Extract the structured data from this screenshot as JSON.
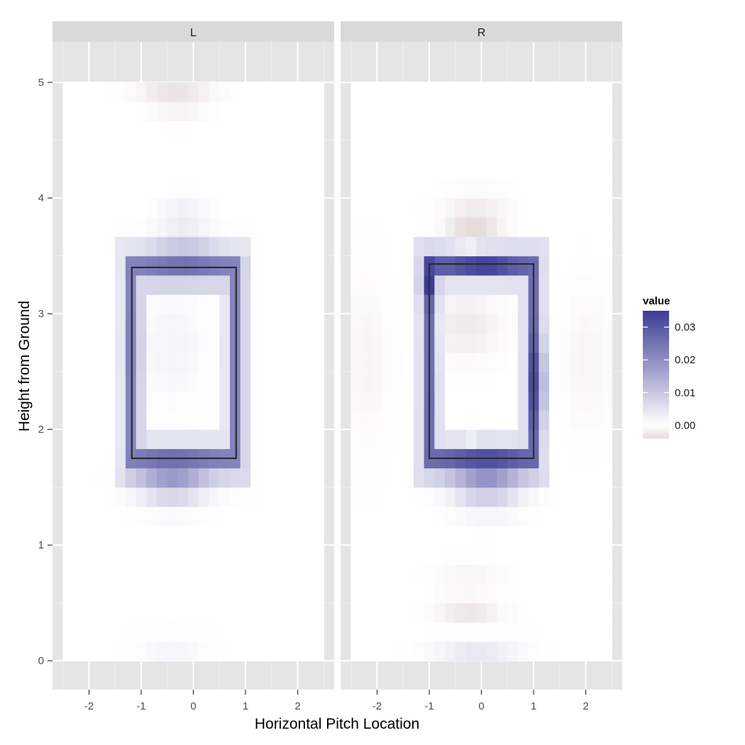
{
  "chart_data": {
    "type": "heatmap",
    "xlabel": "Horizontal Pitch Location",
    "ylabel": "Height from Ground",
    "xlim": [
      -2.7,
      2.7
    ],
    "ylim": [
      -0.25,
      5.35
    ],
    "x_ticks": [
      -2,
      -1,
      0,
      1,
      2
    ],
    "x_tick_labels": [
      "-2",
      "-1",
      "0",
      "1",
      "2"
    ],
    "y_ticks": [
      0,
      1,
      2,
      3,
      4,
      5
    ],
    "y_tick_labels": [
      "0",
      "1",
      "2",
      "3",
      "4",
      "5"
    ],
    "data_x_range": [
      -2.5,
      2.5
    ],
    "data_y_range": [
      0.0,
      5.0
    ],
    "grid_x_cells": 25,
    "grid_y_cells": 30,
    "legend": {
      "title": "value",
      "ticks": [
        0.0,
        0.01,
        0.02,
        0.03
      ],
      "tick_labels": [
        "0.00",
        "0.01",
        "0.02",
        "0.03"
      ],
      "min": -0.004,
      "max": 0.035,
      "low_color": "#e7dcdc",
      "mid_color": "#ffffff",
      "high_color": "#3b3b96"
    },
    "facets": [
      {
        "label": "L",
        "strike_zone": {
          "x": [
            -1.18,
            0.82
          ],
          "y": [
            1.75,
            3.4
          ]
        },
        "features": [
          {
            "shape": "ring",
            "cx": -0.18,
            "cy": 2.57,
            "hw": 1.0,
            "hh": 0.83,
            "peak": 0.022,
            "width": 0.17
          },
          {
            "shape": "blob",
            "cx": -0.4,
            "cy": 1.55,
            "sx": 0.45,
            "sy": 0.13,
            "peak": 0.012
          },
          {
            "shape": "blob",
            "cx": -0.2,
            "cy": 3.55,
            "sx": 0.45,
            "sy": 0.12,
            "peak": 0.006
          },
          {
            "shape": "blob",
            "cx": -0.2,
            "cy": 3.85,
            "sx": 0.3,
            "sy": 0.1,
            "peak": 0.003
          },
          {
            "shape": "blob",
            "cx": -0.4,
            "cy": 2.7,
            "sx": 0.4,
            "sy": 0.3,
            "peak": 0.002
          },
          {
            "shape": "blob",
            "cx": -0.35,
            "cy": 4.95,
            "sx": 0.45,
            "sy": 0.07,
            "peak": -0.0035
          },
          {
            "shape": "blob",
            "cx": -0.3,
            "cy": 4.75,
            "sx": 0.35,
            "sy": 0.07,
            "peak": -0.0012
          },
          {
            "shape": "blob",
            "cx": -0.4,
            "cy": 0.1,
            "sx": 0.45,
            "sy": 0.1,
            "peak": 0.0015
          }
        ]
      },
      {
        "label": "R",
        "strike_zone": {
          "x": [
            -1.0,
            1.0
          ],
          "y": [
            1.75,
            3.43
          ]
        },
        "features": [
          {
            "shape": "ring",
            "cx": 0.0,
            "cy": 2.58,
            "hw": 1.0,
            "hh": 0.84,
            "peak": 0.026,
            "width": 0.16
          },
          {
            "shape": "blob",
            "cx": -1.0,
            "cy": 3.3,
            "sx": 0.12,
            "sy": 0.12,
            "peak": 0.01
          },
          {
            "shape": "blob",
            "cx": 1.1,
            "cy": 2.4,
            "sx": 0.1,
            "sy": 0.25,
            "peak": 0.01
          },
          {
            "shape": "blob",
            "cx": 0.1,
            "cy": 1.55,
            "sx": 0.45,
            "sy": 0.15,
            "peak": 0.013
          },
          {
            "shape": "blob",
            "cx": 0.0,
            "cy": 3.4,
            "sx": 0.45,
            "sy": 0.05,
            "peak": 0.008
          },
          {
            "shape": "blob",
            "cx": -0.15,
            "cy": 3.75,
            "sx": 0.35,
            "sy": 0.08,
            "peak": -0.0045
          },
          {
            "shape": "blob",
            "cx": -0.25,
            "cy": 3.55,
            "sx": 0.15,
            "sy": 0.08,
            "peak": -0.003
          },
          {
            "shape": "blob",
            "cx": -0.15,
            "cy": 3.95,
            "sx": 0.4,
            "sy": 0.08,
            "peak": -0.002
          },
          {
            "shape": "blob",
            "cx": -0.3,
            "cy": 2.9,
            "sx": 0.45,
            "sy": 0.2,
            "peak": -0.0025
          },
          {
            "shape": "blob",
            "cx": -2.2,
            "cy": 2.6,
            "sx": 0.3,
            "sy": 0.5,
            "peak": -0.0012
          },
          {
            "shape": "blob",
            "cx": 2.0,
            "cy": 2.6,
            "sx": 0.3,
            "sy": 0.4,
            "peak": -0.0012
          },
          {
            "shape": "blob",
            "cx": -0.25,
            "cy": 1.95,
            "sx": 0.05,
            "sy": 0.06,
            "peak": -0.004
          },
          {
            "shape": "blob",
            "cx": -0.25,
            "cy": 0.45,
            "sx": 0.4,
            "sy": 0.08,
            "peak": -0.003
          },
          {
            "shape": "blob",
            "cx": -0.25,
            "cy": 0.75,
            "sx": 0.4,
            "sy": 0.08,
            "peak": -0.0012
          },
          {
            "shape": "blob",
            "cx": -0.1,
            "cy": 0.1,
            "sx": 0.55,
            "sy": 0.08,
            "peak": 0.004
          }
        ]
      }
    ]
  }
}
